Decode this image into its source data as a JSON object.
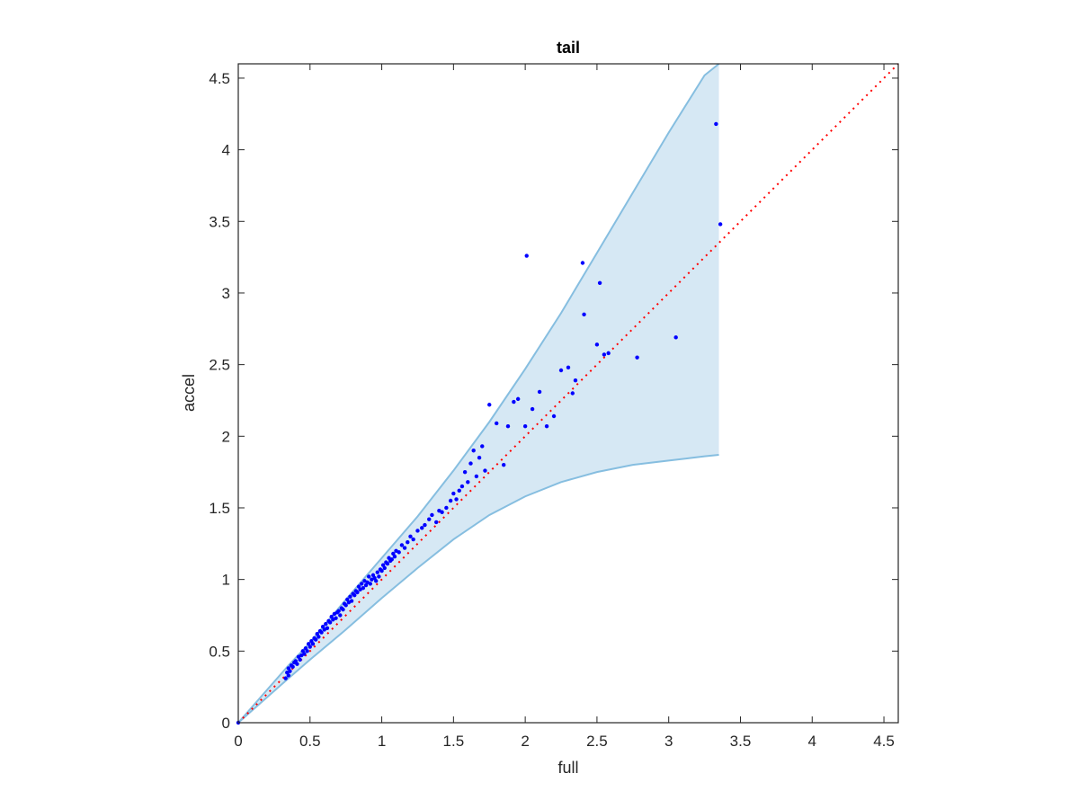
{
  "chart_data": {
    "type": "scatter",
    "title": "tail",
    "xlabel": "full",
    "ylabel": "accel",
    "xlim": [
      0,
      4.6
    ],
    "ylim": [
      0,
      4.6
    ],
    "xticks": [
      "0",
      "0.5",
      "1",
      "1.5",
      "2",
      "2.5",
      "3",
      "3.5",
      "4",
      "4.5"
    ],
    "yticks": [
      "0",
      "0.5",
      "1",
      "1.5",
      "2",
      "2.5",
      "3",
      "3.5",
      "4",
      "4.5"
    ],
    "grid": false,
    "box": true,
    "colors": {
      "points": "#0000ff",
      "band_fill": "#d6e8f4",
      "band_edge": "#86bee0",
      "reference_line": "#ff0000"
    },
    "band": {
      "x": [
        0,
        0.35,
        0.5,
        0.75,
        1.0,
        1.25,
        1.5,
        1.75,
        2.0,
        2.25,
        2.5,
        2.75,
        3.0,
        3.25,
        3.35
      ],
      "upper": [
        0,
        0.4,
        0.56,
        0.86,
        1.15,
        1.44,
        1.76,
        2.1,
        2.47,
        2.86,
        3.28,
        3.7,
        4.12,
        4.52,
        4.6
      ],
      "lower": [
        0,
        0.31,
        0.44,
        0.65,
        0.87,
        1.08,
        1.28,
        1.45,
        1.58,
        1.68,
        1.75,
        1.8,
        1.83,
        1.86,
        1.87
      ]
    },
    "reference_line": {
      "x": [
        0,
        4.6
      ],
      "y": [
        0,
        4.6
      ],
      "style": "dotted"
    },
    "series": [
      {
        "x": [
          0.33,
          0.34,
          0.35,
          0.35,
          0.36,
          0.37,
          0.38,
          0.39,
          0.4,
          0.41,
          0.42,
          0.43,
          0.44,
          0.45,
          0.46,
          0.47,
          0.48,
          0.49,
          0.5,
          0.51,
          0.52,
          0.53,
          0.54,
          0.55,
          0.56,
          0.57,
          0.58,
          0.59,
          0.6,
          0.61,
          0.62,
          0.63,
          0.64,
          0.65,
          0.66,
          0.67,
          0.68,
          0.69,
          0.7,
          0.71,
          0.72,
          0.73,
          0.74,
          0.75,
          0.76,
          0.77,
          0.78,
          0.79,
          0.8,
          0.81,
          0.82,
          0.83,
          0.84,
          0.85,
          0.86,
          0.87,
          0.88,
          0.89,
          0.9,
          0.91,
          0.92,
          0.93,
          0.94,
          0.95,
          0.96,
          0.97,
          0.98,
          0.99,
          1.0,
          1.01,
          1.02,
          1.03,
          1.04,
          1.05,
          1.06,
          1.07,
          1.08,
          1.09,
          1.1,
          1.12,
          1.14,
          1.16,
          1.18,
          1.2,
          1.22,
          1.25,
          1.28,
          1.3,
          1.33,
          1.35,
          1.38,
          1.4,
          1.42,
          1.45,
          1.48,
          1.5,
          1.52,
          1.54,
          1.56,
          1.58,
          1.6,
          1.62,
          1.64,
          1.66,
          1.68,
          1.7,
          1.72,
          1.75,
          1.8,
          1.85,
          1.88,
          1.92,
          1.95,
          2.0,
          2.01,
          2.05,
          2.1,
          2.15,
          2.2,
          2.25,
          2.3,
          2.33,
          2.35,
          2.4,
          2.41,
          2.5,
          2.52,
          2.55,
          2.58,
          2.78,
          3.05,
          3.33,
          3.36,
          0.0
        ],
        "y": [
          0.31,
          0.35,
          0.33,
          0.38,
          0.36,
          0.4,
          0.39,
          0.42,
          0.43,
          0.41,
          0.46,
          0.44,
          0.47,
          0.5,
          0.48,
          0.52,
          0.5,
          0.55,
          0.53,
          0.57,
          0.55,
          0.59,
          0.58,
          0.62,
          0.6,
          0.64,
          0.63,
          0.67,
          0.65,
          0.69,
          0.66,
          0.71,
          0.7,
          0.74,
          0.72,
          0.76,
          0.73,
          0.77,
          0.78,
          0.75,
          0.8,
          0.79,
          0.83,
          0.82,
          0.86,
          0.84,
          0.88,
          0.85,
          0.9,
          0.89,
          0.92,
          0.91,
          0.95,
          0.93,
          0.97,
          0.94,
          0.99,
          0.96,
          0.98,
          1.02,
          0.97,
          1.0,
          1.03,
          1.01,
          0.99,
          1.05,
          1.02,
          1.07,
          1.06,
          1.1,
          1.08,
          1.12,
          1.11,
          1.15,
          1.13,
          1.14,
          1.18,
          1.16,
          1.2,
          1.19,
          1.24,
          1.22,
          1.26,
          1.3,
          1.28,
          1.34,
          1.36,
          1.38,
          1.42,
          1.45,
          1.4,
          1.48,
          1.47,
          1.5,
          1.55,
          1.6,
          1.56,
          1.62,
          1.65,
          1.75,
          1.68,
          1.81,
          1.9,
          1.72,
          1.85,
          1.93,
          1.76,
          2.22,
          2.09,
          1.8,
          2.07,
          2.24,
          2.26,
          2.07,
          3.26,
          2.19,
          2.31,
          2.07,
          2.14,
          2.46,
          2.48,
          2.3,
          2.39,
          3.21,
          2.85,
          2.64,
          3.07,
          2.57,
          2.58,
          2.55,
          2.69,
          4.18,
          3.48,
          0.0
        ]
      }
    ]
  }
}
